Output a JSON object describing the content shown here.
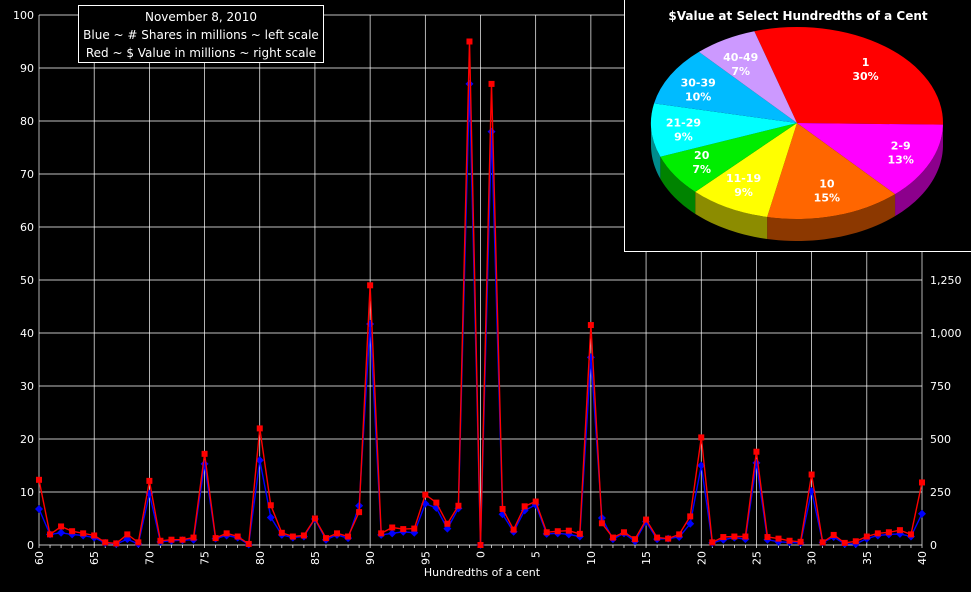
{
  "legend": {
    "date": "November 8, 2010",
    "line_blue": "Blue ~ # Shares in millions ~ left scale",
    "line_red": "Red ~ $ Value in millions ~ right scale"
  },
  "chart_data": [
    {
      "type": "line",
      "xlabel": "Hundredths of a cent",
      "x_ticks": [
        "60",
        "65",
        "70",
        "75",
        "80",
        "85",
        "90",
        "95",
        "0",
        "5",
        "10",
        "15",
        "20",
        "25",
        "30",
        "35",
        "40"
      ],
      "left_ylim": [
        0,
        100
      ],
      "left_ticks": [
        0,
        10,
        20,
        30,
        40,
        50,
        60,
        70,
        80,
        90,
        100
      ],
      "right_ylim": [
        0,
        2500
      ],
      "right_ticks": [
        "0",
        "250",
        "500",
        "750",
        "1,000",
        "1,250"
      ],
      "grid": true,
      "series": [
        {
          "color": "#0000ff",
          "axis": "left",
          "values": [
            6.8,
            2.0,
            2.3,
            2.0,
            1.8,
            1.4,
            0.4,
            0.2,
            1.1,
            0.2,
            9.7,
            0.6,
            0.8,
            0.9,
            1.0,
            15.3,
            1.2,
            1.8,
            1.4,
            0.1,
            16.0,
            5.2,
            1.9,
            1.4,
            1.6,
            4.9,
            1.0,
            1.9,
            1.3,
            7.4,
            41.7,
            1.9,
            2.2,
            2.5,
            2.3,
            7.8,
            7.0,
            3.1,
            6.9,
            87.0,
            0,
            78.0,
            5.8,
            2.5,
            6.5,
            7.6,
            2.1,
            2.2,
            2.0,
            1.6,
            35.4,
            5.1,
            1.1,
            2.2,
            0.7,
            4.4,
            1.1,
            1.2,
            1.5,
            4.0,
            15.0,
            0.4,
            1.0,
            1.4,
            1.1,
            15.5,
            1.0,
            0.6,
            0.5,
            0.4,
            10.2,
            0.5,
            1.5,
            0.2,
            0.2,
            1.2,
            1.8,
            2.0,
            2.1,
            1.6,
            5.9
          ]
        },
        {
          "color": "#ff0000",
          "axis": "right",
          "values": [
            12.3,
            2.0,
            3.5,
            2.6,
            2.2,
            1.8,
            0.5,
            0.3,
            2.0,
            0.5,
            12.1,
            0.8,
            1.0,
            1.0,
            1.4,
            17.2,
            1.3,
            2.2,
            1.6,
            0.2,
            22.0,
            7.5,
            2.3,
            1.6,
            1.8,
            5.0,
            1.3,
            2.2,
            1.6,
            6.2,
            49.0,
            2.2,
            3.3,
            3.0,
            3.1,
            9.5,
            8.0,
            4.0,
            7.4,
            95.0,
            0,
            87.0,
            6.8,
            2.9,
            7.3,
            8.2,
            2.4,
            2.6,
            2.7,
            2.1,
            41.5,
            4.1,
            1.4,
            2.4,
            1.1,
            4.8,
            1.4,
            1.2,
            2.0,
            5.4,
            20.3,
            0.5,
            1.5,
            1.6,
            1.6,
            17.6,
            1.5,
            1.2,
            0.8,
            0.6,
            13.3,
            0.5,
            1.9,
            0.4,
            0.7,
            1.6,
            2.2,
            2.4,
            2.8,
            2.0,
            11.8
          ]
        }
      ]
    },
    {
      "type": "pie",
      "title": "$Value at Select Hundredths of a Cent",
      "slices": [
        {
          "label": "1",
          "pct": "30%",
          "value": 30,
          "color": "#ff0000"
        },
        {
          "label": "2-9",
          "pct": "13%",
          "value": 13,
          "color": "#ff00ff"
        },
        {
          "label": "10",
          "pct": "15%",
          "value": 15,
          "color": "#ff6600"
        },
        {
          "label": "11-19",
          "pct": "9%",
          "value": 9,
          "color": "#ffff00"
        },
        {
          "label": "20",
          "pct": "7%",
          "value": 7,
          "color": "#00ee00"
        },
        {
          "label": "21-29",
          "pct": "9%",
          "value": 9,
          "color": "#00ffff"
        },
        {
          "label": "30-39",
          "pct": "10%",
          "value": 10,
          "color": "#00bbff"
        },
        {
          "label": "40-49",
          "pct": "7%",
          "value": 7,
          "color": "#cc99ff"
        }
      ]
    }
  ]
}
